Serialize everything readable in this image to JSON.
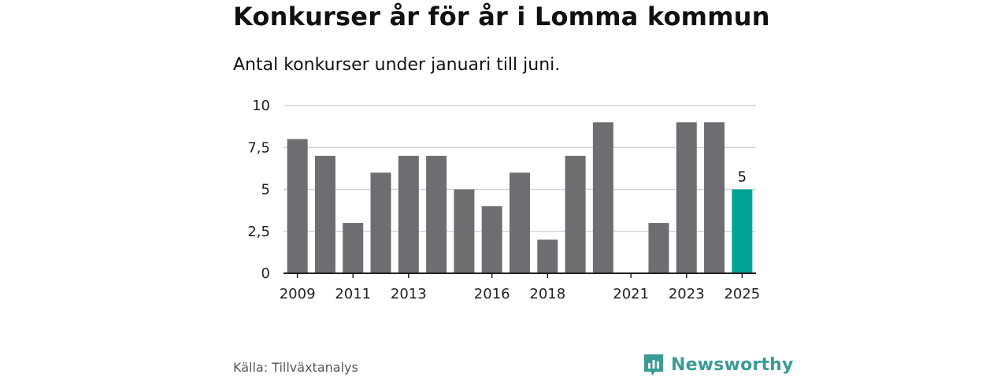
{
  "title": "Konkurser år för år i Lomma kommun",
  "subtitle": "Antal konkurser under januari till juni.",
  "source": "Källa: Tillväxtanalys",
  "brand": {
    "name": "Newsworthy",
    "icon": "newsworthy-logo-icon",
    "color": "#3a9c94"
  },
  "chart_data": {
    "type": "bar",
    "categories": [
      "2009",
      "2010",
      "2011",
      "2012",
      "2013",
      "2014",
      "2015",
      "2016",
      "2017",
      "2018",
      "2019",
      "2020",
      "2021",
      "2022",
      "2023",
      "2024",
      "2025"
    ],
    "values": [
      8,
      7,
      3,
      6,
      7,
      7,
      5,
      4,
      6,
      2,
      7,
      9,
      0,
      3,
      9,
      9,
      5
    ],
    "x_tick_labels": [
      "2009",
      "2011",
      "2013",
      "2016",
      "2018",
      "2021",
      "2023",
      "2025"
    ],
    "y_ticks": [
      0,
      2.5,
      5,
      7.5,
      10
    ],
    "y_tick_labels": [
      "0",
      "2,5",
      "5",
      "7,5",
      "10"
    ],
    "ylim": [
      0,
      10
    ],
    "grid": true,
    "colors": {
      "bar": "#6d6d72",
      "highlight": "#00a396",
      "axis": "#222222",
      "grid": "#d4d4d4"
    },
    "highlight_category": "2025",
    "data_labels": [
      {
        "category": "2025",
        "text": "5"
      }
    ]
  }
}
